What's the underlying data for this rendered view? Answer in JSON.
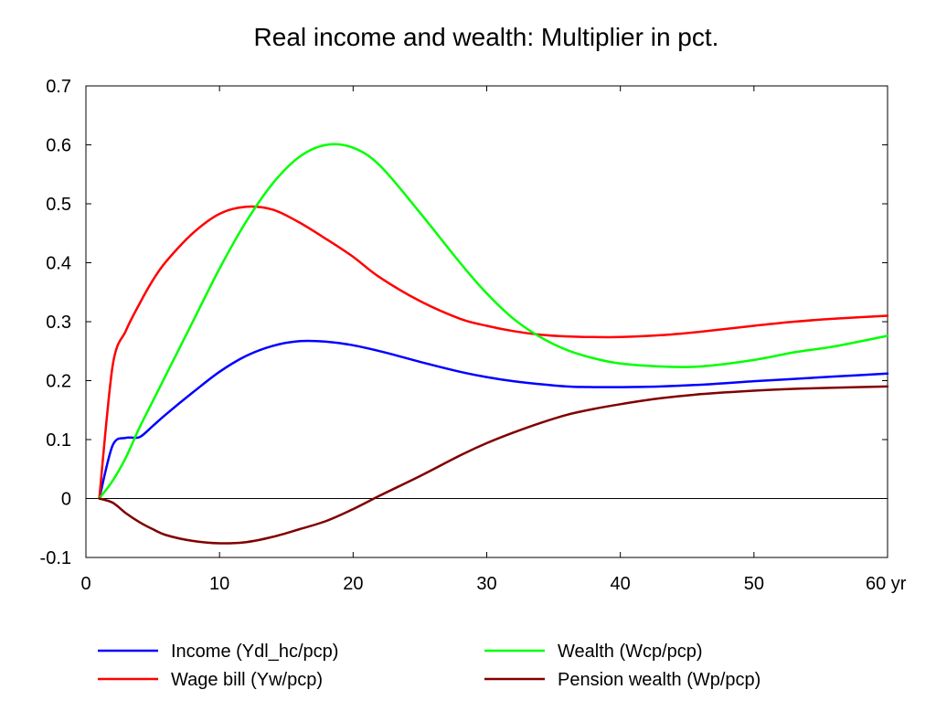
{
  "chart_data": {
    "type": "line",
    "title": "Real income and wealth: Multiplier in pct.",
    "xlabel": "",
    "ylabel": "",
    "x_unit_label": "yr",
    "xlim": [
      0,
      60
    ],
    "ylim": [
      -0.1,
      0.7
    ],
    "x_ticks": [
      0,
      10,
      20,
      30,
      40,
      50,
      60
    ],
    "x_tick_labels": [
      "0",
      "10",
      "20",
      "30",
      "40",
      "50",
      "60 yr"
    ],
    "y_ticks": [
      -0.1,
      0,
      0.1,
      0.2,
      0.3,
      0.4,
      0.5,
      0.6,
      0.7
    ],
    "y_tick_labels": [
      "-0.1",
      "0",
      "0.1",
      "0.2",
      "0.3",
      "0.4",
      "0.5",
      "0.6",
      "0.7"
    ],
    "zero_line": true,
    "grid": false,
    "legend_position": "bottom",
    "x": [
      1,
      2,
      3,
      4,
      5,
      6,
      8,
      10,
      12,
      14,
      16,
      18,
      20,
      22,
      25,
      28,
      30,
      32,
      34,
      36,
      38,
      40,
      43,
      46,
      50,
      53,
      56,
      60
    ],
    "series": [
      {
        "name": "Income (Ydl_hc/pcp)",
        "color": "#0000ff",
        "values": [
          0.0,
          0.09,
          0.103,
          0.104,
          0.123,
          0.143,
          0.18,
          0.215,
          0.242,
          0.259,
          0.267,
          0.266,
          0.26,
          0.25,
          0.232,
          0.215,
          0.206,
          0.199,
          0.194,
          0.19,
          0.189,
          0.189,
          0.19,
          0.193,
          0.199,
          0.203,
          0.207,
          0.212
        ]
      },
      {
        "name": "Wage bill (Yw/pcp)",
        "color": "#ff0000",
        "values": [
          0.0,
          0.225,
          0.285,
          0.33,
          0.37,
          0.402,
          0.45,
          0.483,
          0.495,
          0.49,
          0.468,
          0.44,
          0.41,
          0.375,
          0.335,
          0.305,
          0.293,
          0.284,
          0.278,
          0.275,
          0.274,
          0.274,
          0.277,
          0.283,
          0.293,
          0.3,
          0.305,
          0.31
        ]
      },
      {
        "name": "Wealth (Wcp/pcp)",
        "color": "#00ff00",
        "values": [
          0.0,
          0.03,
          0.07,
          0.12,
          0.165,
          0.21,
          0.3,
          0.39,
          0.47,
          0.535,
          0.58,
          0.6,
          0.595,
          0.565,
          0.485,
          0.4,
          0.348,
          0.305,
          0.274,
          0.252,
          0.238,
          0.229,
          0.224,
          0.224,
          0.235,
          0.248,
          0.258,
          0.276
        ]
      },
      {
        "name": "Pension wealth (Wp/pcp)",
        "color": "#800000",
        "values": [
          0.0,
          -0.007,
          -0.025,
          -0.04,
          -0.052,
          -0.062,
          -0.072,
          -0.076,
          -0.074,
          -0.065,
          -0.052,
          -0.038,
          -0.018,
          0.005,
          0.038,
          0.073,
          0.094,
          0.112,
          0.128,
          0.142,
          0.152,
          0.16,
          0.17,
          0.177,
          0.183,
          0.186,
          0.188,
          0.19
        ]
      }
    ]
  }
}
